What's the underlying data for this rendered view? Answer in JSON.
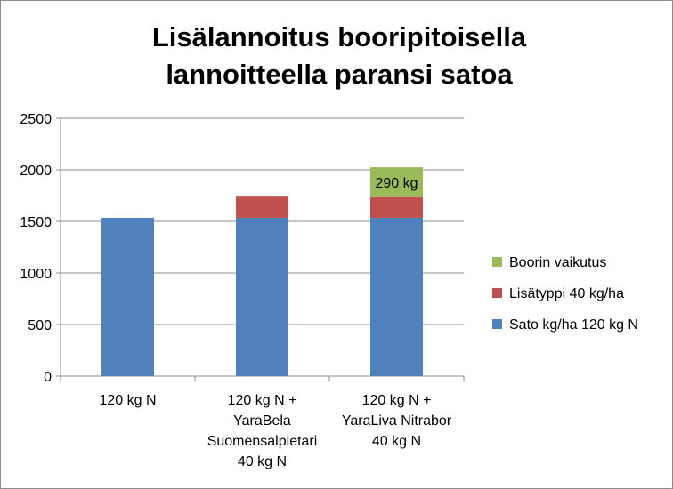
{
  "chart_data": {
    "type": "bar",
    "stacked": true,
    "title_lines": [
      "Lisälannoitus booripitoisella",
      "lannoitteella paransi satoa"
    ],
    "categories": [
      [
        "120 kg N"
      ],
      [
        "120 kg N +",
        "YaraBela",
        "Suomensalpietari",
        "40 kg N"
      ],
      [
        "120 kg N +",
        "YaraLiva Nitrabor",
        "40 kg N"
      ]
    ],
    "series": [
      {
        "name": "Sato kg/ha 120 kg N",
        "color": "#4f81bd",
        "values": [
          1535,
          1535,
          1535
        ]
      },
      {
        "name": "Lisätyppi 40 kg/ha",
        "color": "#c0504d",
        "values": [
          0,
          205,
          200
        ]
      },
      {
        "name": "Boorin vaikutus",
        "color": "#9bbb59",
        "values": [
          0,
          0,
          290
        ]
      }
    ],
    "data_labels": [
      {
        "series": 2,
        "category": 2,
        "text": "290 kg"
      }
    ],
    "ylim": [
      0,
      2500
    ],
    "yticks": [
      0,
      500,
      1000,
      1500,
      2000,
      2500
    ],
    "grid": true,
    "legend_position": "right"
  }
}
